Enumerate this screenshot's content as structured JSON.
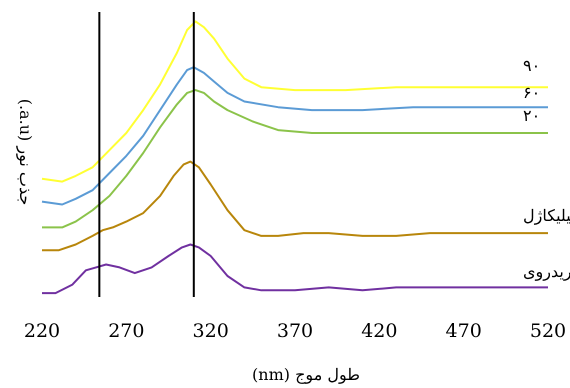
{
  "chart_data": {
    "type": "line",
    "title": "",
    "xlabel": "طول موج (nm)",
    "ylabel": "جذب نور (a.u.)",
    "xlim": [
      220,
      520
    ],
    "ylim": [
      0,
      1
    ],
    "x_ticks": [
      "220",
      "270",
      "320",
      "370",
      "420",
      "470",
      "520"
    ],
    "y_ticks_shown": false,
    "grid": false,
    "legend": "inline labels at right",
    "vertical_lines": [
      254,
      310
    ],
    "series": [
      {
        "name": "۹۰",
        "color": "#ffff33",
        "points": [
          [
            220,
            0.41
          ],
          [
            232,
            0.4
          ],
          [
            240,
            0.42
          ],
          [
            250,
            0.45
          ],
          [
            260,
            0.51
          ],
          [
            270,
            0.57
          ],
          [
            280,
            0.65
          ],
          [
            290,
            0.74
          ],
          [
            300,
            0.85
          ],
          [
            306,
            0.93
          ],
          [
            311,
            0.96
          ],
          [
            316,
            0.94
          ],
          [
            322,
            0.9
          ],
          [
            330,
            0.83
          ],
          [
            340,
            0.76
          ],
          [
            350,
            0.73
          ],
          [
            370,
            0.72
          ],
          [
            400,
            0.72
          ],
          [
            430,
            0.73
          ],
          [
            460,
            0.73
          ],
          [
            490,
            0.73
          ],
          [
            520,
            0.73
          ]
        ]
      },
      {
        "name": "۶۰",
        "color": "#5b9bd5",
        "points": [
          [
            220,
            0.33
          ],
          [
            232,
            0.32
          ],
          [
            240,
            0.34
          ],
          [
            250,
            0.37
          ],
          [
            260,
            0.43
          ],
          [
            270,
            0.49
          ],
          [
            280,
            0.56
          ],
          [
            290,
            0.65
          ],
          [
            300,
            0.74
          ],
          [
            306,
            0.79
          ],
          [
            310,
            0.8
          ],
          [
            316,
            0.78
          ],
          [
            322,
            0.75
          ],
          [
            330,
            0.71
          ],
          [
            340,
            0.68
          ],
          [
            360,
            0.66
          ],
          [
            380,
            0.65
          ],
          [
            410,
            0.65
          ],
          [
            440,
            0.66
          ],
          [
            470,
            0.66
          ],
          [
            500,
            0.66
          ],
          [
            520,
            0.66
          ]
        ]
      },
      {
        "name": "۲۰",
        "color": "#8bc34a",
        "points": [
          [
            220,
            0.24
          ],
          [
            232,
            0.24
          ],
          [
            240,
            0.26
          ],
          [
            250,
            0.3
          ],
          [
            260,
            0.35
          ],
          [
            270,
            0.42
          ],
          [
            280,
            0.5
          ],
          [
            290,
            0.59
          ],
          [
            300,
            0.67
          ],
          [
            306,
            0.71
          ],
          [
            311,
            0.72
          ],
          [
            316,
            0.71
          ],
          [
            322,
            0.68
          ],
          [
            330,
            0.65
          ],
          [
            345,
            0.61
          ],
          [
            360,
            0.58
          ],
          [
            380,
            0.57
          ],
          [
            410,
            0.57
          ],
          [
            440,
            0.57
          ],
          [
            470,
            0.57
          ],
          [
            500,
            0.57
          ],
          [
            520,
            0.57
          ]
        ]
      },
      {
        "name": "سیلیکاژل",
        "color": "#b8860b",
        "points": [
          [
            220,
            0.16
          ],
          [
            230,
            0.16
          ],
          [
            240,
            0.18
          ],
          [
            250,
            0.21
          ],
          [
            256,
            0.23
          ],
          [
            262,
            0.24
          ],
          [
            270,
            0.26
          ],
          [
            280,
            0.29
          ],
          [
            290,
            0.35
          ],
          [
            298,
            0.42
          ],
          [
            304,
            0.46
          ],
          [
            308,
            0.47
          ],
          [
            313,
            0.45
          ],
          [
            320,
            0.39
          ],
          [
            330,
            0.3
          ],
          [
            340,
            0.23
          ],
          [
            350,
            0.21
          ],
          [
            360,
            0.21
          ],
          [
            375,
            0.22
          ],
          [
            390,
            0.22
          ],
          [
            410,
            0.21
          ],
          [
            430,
            0.21
          ],
          [
            450,
            0.22
          ],
          [
            470,
            0.22
          ],
          [
            500,
            0.22
          ],
          [
            520,
            0.22
          ]
        ]
      },
      {
        "name": "کلریدروی",
        "color": "#7030a0",
        "points": [
          [
            220,
            0.01
          ],
          [
            228,
            0.01
          ],
          [
            238,
            0.04
          ],
          [
            246,
            0.09
          ],
          [
            252,
            0.1
          ],
          [
            258,
            0.11
          ],
          [
            266,
            0.1
          ],
          [
            275,
            0.08
          ],
          [
            285,
            0.1
          ],
          [
            295,
            0.14
          ],
          [
            303,
            0.17
          ],
          [
            308,
            0.18
          ],
          [
            313,
            0.17
          ],
          [
            320,
            0.14
          ],
          [
            330,
            0.07
          ],
          [
            340,
            0.03
          ],
          [
            350,
            0.02
          ],
          [
            370,
            0.02
          ],
          [
            390,
            0.03
          ],
          [
            410,
            0.02
          ],
          [
            430,
            0.03
          ],
          [
            450,
            0.03
          ],
          [
            470,
            0.03
          ],
          [
            490,
            0.03
          ],
          [
            520,
            0.03
          ]
        ]
      }
    ]
  }
}
